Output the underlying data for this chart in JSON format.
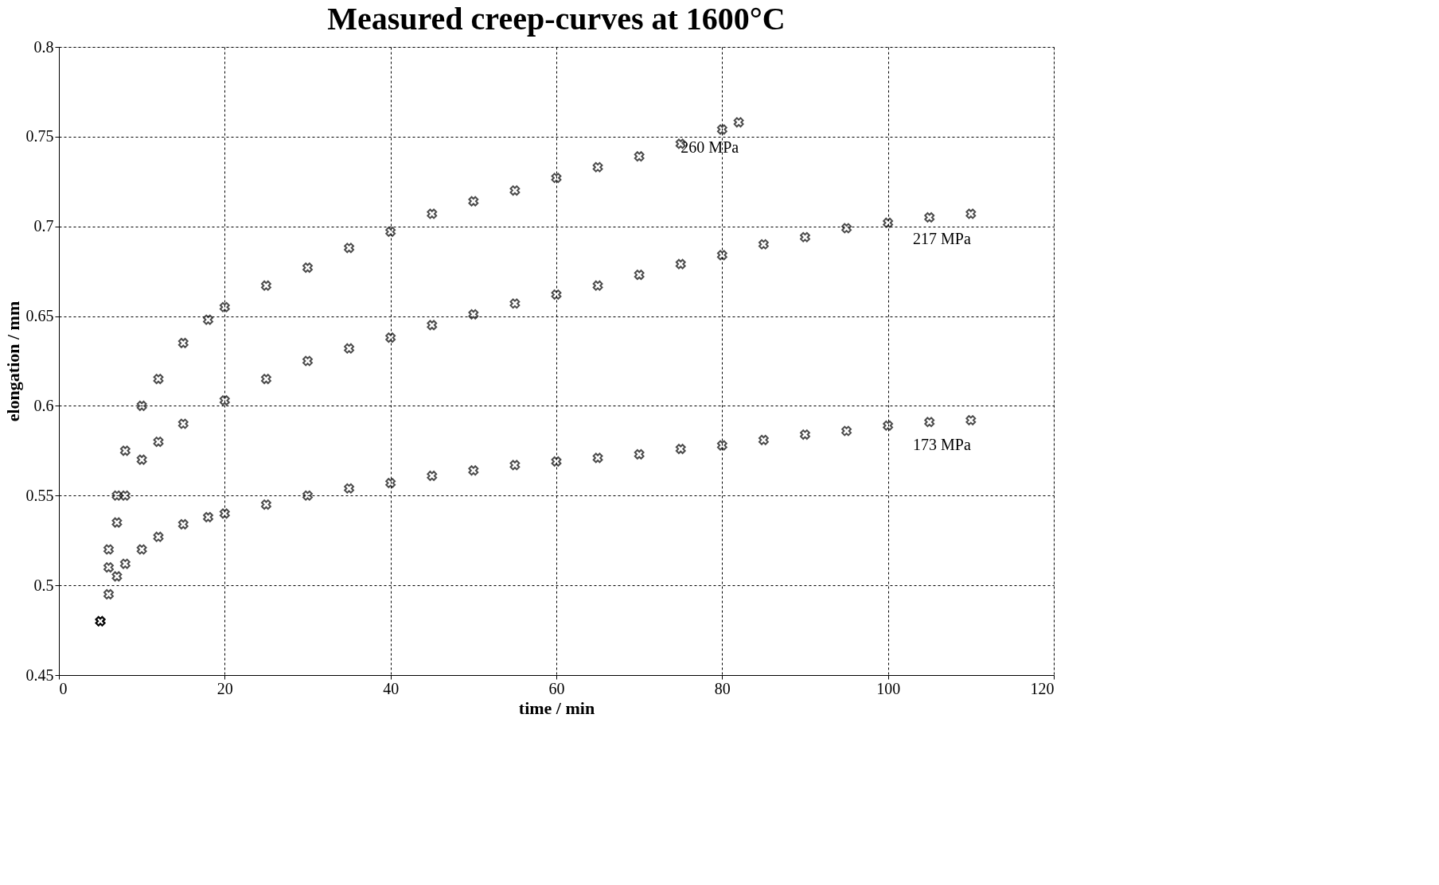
{
  "chart_data": {
    "type": "scatter",
    "title": "Measured creep-curves at 1600°C",
    "xlabel": "time / min",
    "ylabel": "elongation / mm",
    "xlim": [
      0,
      120
    ],
    "xticks": [
      0,
      20,
      40,
      60,
      80,
      100,
      120
    ],
    "ylim": [
      0.45,
      0.8
    ],
    "yticks": [
      0.45,
      0.5,
      0.55,
      0.6,
      0.65,
      0.7,
      0.75,
      0.8
    ],
    "grid": true,
    "marker": "cross",
    "legend": false,
    "series": [
      {
        "name": "260 MPa",
        "color": "#000000",
        "x": [
          5,
          6,
          7,
          8,
          10,
          12,
          15,
          18,
          20,
          25,
          30,
          35,
          40,
          45,
          50,
          55,
          60,
          65,
          70,
          75,
          80,
          82
        ],
        "values": [
          0.48,
          0.52,
          0.55,
          0.575,
          0.6,
          0.615,
          0.635,
          0.648,
          0.655,
          0.667,
          0.677,
          0.688,
          0.697,
          0.707,
          0.714,
          0.72,
          0.727,
          0.733,
          0.739,
          0.746,
          0.754,
          0.758
        ]
      },
      {
        "name": "217 MPa",
        "color": "#000000",
        "x": [
          5,
          6,
          7,
          8,
          10,
          12,
          15,
          20,
          25,
          30,
          35,
          40,
          45,
          50,
          55,
          60,
          65,
          70,
          75,
          80,
          85,
          90,
          95,
          100,
          105,
          110
        ],
        "values": [
          0.48,
          0.51,
          0.535,
          0.55,
          0.57,
          0.58,
          0.59,
          0.603,
          0.615,
          0.625,
          0.632,
          0.638,
          0.645,
          0.651,
          0.657,
          0.662,
          0.667,
          0.673,
          0.679,
          0.684,
          0.69,
          0.694,
          0.699,
          0.702,
          0.705,
          0.707
        ]
      },
      {
        "name": "173 MPa",
        "color": "#000000",
        "x": [
          5,
          6,
          7,
          8,
          10,
          12,
          15,
          18,
          20,
          25,
          30,
          35,
          40,
          45,
          50,
          55,
          60,
          65,
          70,
          75,
          80,
          85,
          90,
          95,
          100,
          105,
          110
        ],
        "values": [
          0.48,
          0.495,
          0.505,
          0.512,
          0.52,
          0.527,
          0.534,
          0.538,
          0.54,
          0.545,
          0.55,
          0.554,
          0.557,
          0.561,
          0.564,
          0.567,
          0.569,
          0.571,
          0.573,
          0.576,
          0.578,
          0.581,
          0.584,
          0.586,
          0.589,
          0.591,
          0.592
        ]
      }
    ]
  }
}
